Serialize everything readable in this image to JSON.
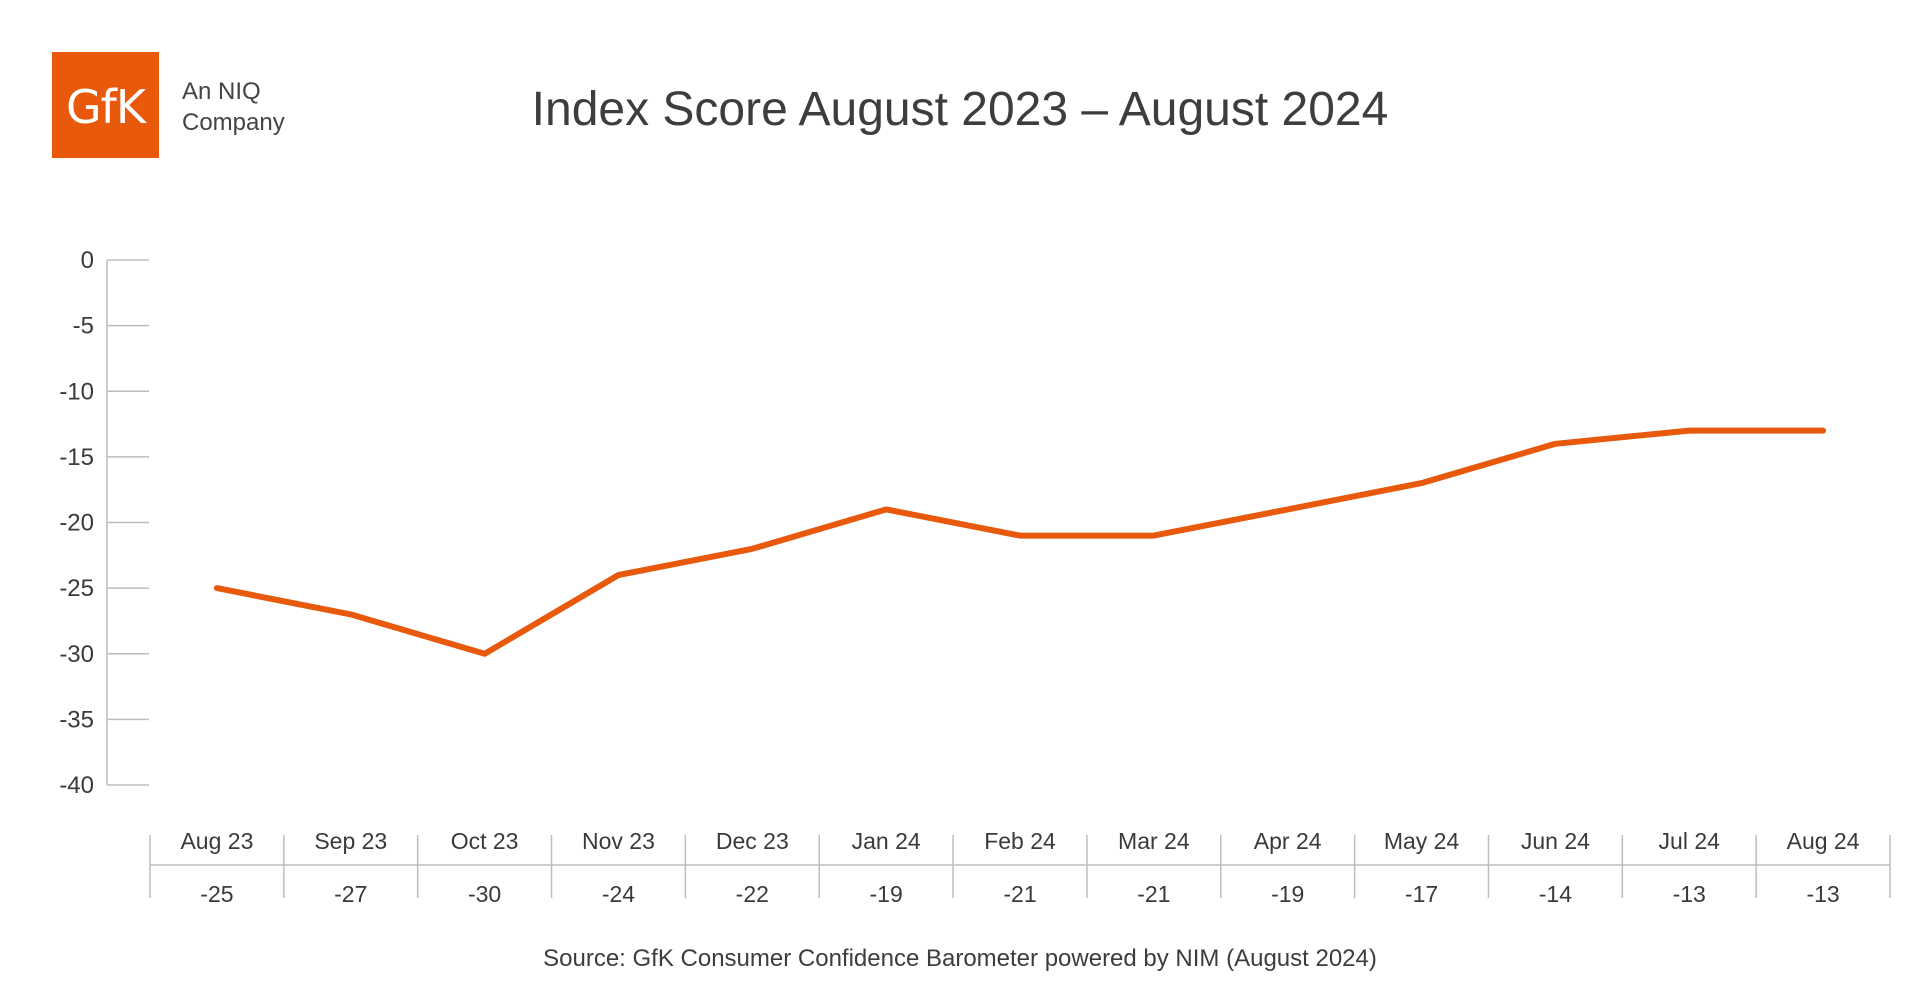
{
  "logo": {
    "brand": "GfK",
    "tagline_line1": "An NIQ",
    "tagline_line2": "Company"
  },
  "chart_data": {
    "type": "line",
    "title": "Index Score August 2023 – August 2024",
    "categories": [
      "Aug 23",
      "Sep 23",
      "Oct 23",
      "Nov 23",
      "Dec 23",
      "Jan 24",
      "Feb 24",
      "Mar 24",
      "Apr 24",
      "May 24",
      "Jun 24",
      "Jul 24",
      "Aug 24"
    ],
    "series": [
      {
        "values": [
          -25,
          -27,
          -30,
          -24,
          -22,
          -19,
          -21,
          -21,
          -19,
          -17,
          -14,
          -13,
          -13
        ]
      }
    ],
    "data_labels": [
      "-25",
      "-27",
      "-30",
      "-24",
      "-22",
      "-19",
      "-21",
      "-21",
      "-19",
      "-17",
      "-14",
      "-13",
      "-13"
    ],
    "ylim": [
      -40,
      0
    ],
    "yticks": [
      0,
      -5,
      -10,
      -15,
      -20,
      -25,
      -30,
      -35,
      -40
    ],
    "ytick_labels": [
      "0",
      "-5",
      "-10",
      "-15",
      "-20",
      "-25",
      "-30",
      "-35",
      "-40"
    ],
    "xlabel": "",
    "ylabel": "",
    "grid": false,
    "legend": "none",
    "line_color": "#e8590c",
    "axis_color": "#bdbdbd"
  },
  "source": "Source: GfK Consumer Confidence Barometer powered by NIM (August 2024)"
}
